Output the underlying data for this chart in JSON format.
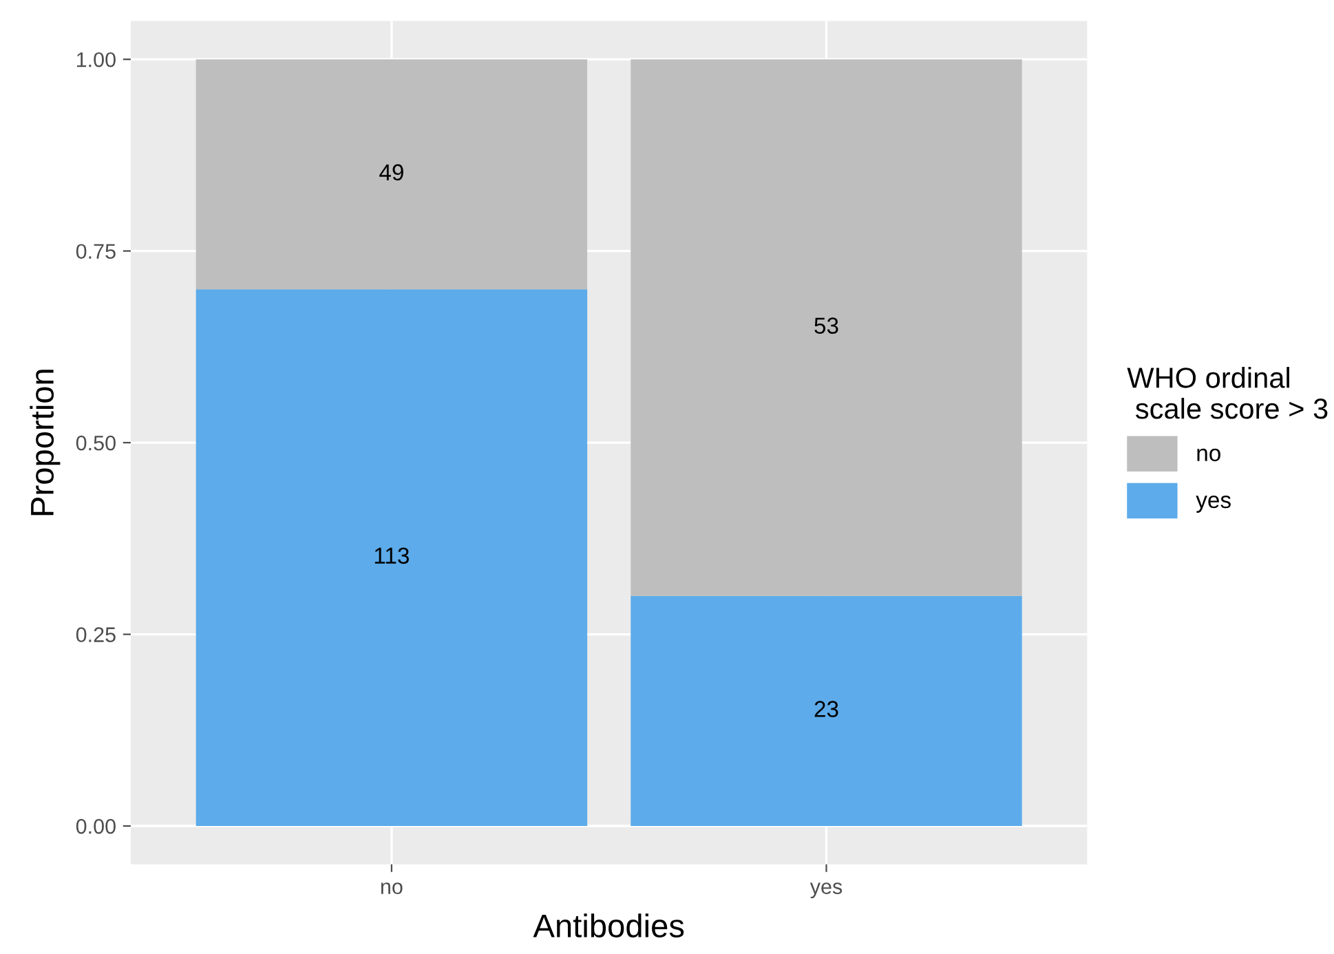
{
  "chart_data": {
    "type": "bar",
    "stacked": true,
    "xlabel": "Antibodies",
    "ylabel": "Proportion",
    "legend_title": "WHO ordinal\n scale score > 3",
    "legend": "right",
    "grid": true,
    "categories": [
      "no",
      "yes"
    ],
    "series": [
      {
        "name": "yes",
        "color": "#5dabea",
        "values": [
          0.7,
          0.3
        ]
      },
      {
        "name": "no",
        "color": "#bebebe",
        "values": [
          0.3,
          0.7
        ]
      }
    ],
    "annotations": [
      "113",
      "23",
      "49",
      "53"
    ],
    "ylim": [
      -0.05,
      1.05
    ],
    "yticks": [
      {
        "value": 0,
        "label": "0.00"
      },
      {
        "value": 0.25,
        "label": "0.25"
      },
      {
        "value": 0.5,
        "label": "0.50"
      },
      {
        "value": 0.75,
        "label": "0.75"
      },
      {
        "value": 1,
        "label": "1.00"
      }
    ]
  }
}
